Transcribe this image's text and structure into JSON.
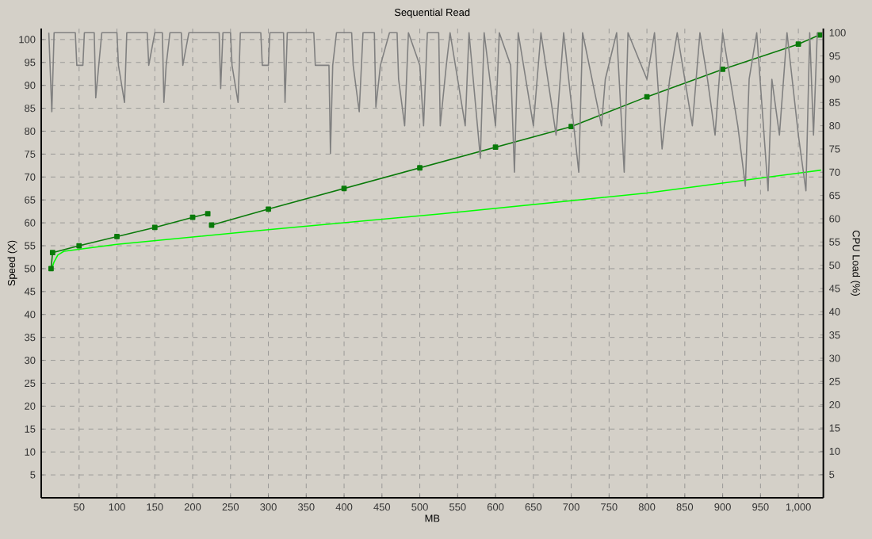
{
  "chart_data": {
    "type": "line",
    "title": "Sequential Read",
    "xlabel": "MB",
    "ylabel": "Speed (X)",
    "y2label": "CPU Load (%)",
    "xlim": [
      0,
      1033
    ],
    "ylim": [
      0,
      102.4
    ],
    "y2lim": [
      0,
      100.9
    ],
    "xticks": [
      50,
      100,
      150,
      200,
      250,
      300,
      350,
      400,
      450,
      500,
      550,
      600,
      650,
      700,
      750,
      800,
      850,
      900,
      950,
      {
        "value": 1000,
        "label": "1,000"
      }
    ],
    "yticks": [
      5,
      10,
      15,
      20,
      25,
      30,
      35,
      40,
      45,
      50,
      55,
      60,
      65,
      70,
      75,
      80,
      85,
      90,
      95,
      100
    ],
    "y2ticks": [
      5,
      10,
      15,
      20,
      25,
      30,
      35,
      40,
      45,
      50,
      55,
      60,
      65,
      70,
      75,
      80,
      85,
      90,
      95,
      100
    ],
    "grid": true,
    "series": [
      {
        "color": "#808080",
        "axis": "y2",
        "marker": "none",
        "x": [
          10,
          14,
          17,
          45,
          47,
          55,
          57,
          70,
          72,
          76,
          80,
          100,
          102,
          110,
          113,
          140,
          142,
          150,
          160,
          162,
          165,
          170,
          185,
          187,
          195,
          215,
          235,
          237,
          240,
          250,
          252,
          260,
          263,
          290,
          292,
          300,
          302,
          320,
          322,
          325,
          360,
          362,
          380,
          382,
          385,
          390,
          410,
          412,
          420,
          425,
          440,
          442,
          448,
          460,
          470,
          472,
          480,
          485,
          500,
          505,
          510,
          525,
          527,
          535,
          540,
          560,
          565,
          580,
          585,
          600,
          605,
          620,
          625,
          630,
          650,
          660,
          680,
          690,
          700,
          710,
          715,
          740,
          745,
          760,
          770,
          775,
          800,
          810,
          820,
          830,
          840,
          860,
          870,
          880,
          890,
          900,
          920,
          930,
          935,
          945,
          960,
          965,
          975,
          985,
          1000,
          1010,
          1015,
          1020,
          1025
        ],
        "values": [
          100,
          83,
          100,
          100,
          93,
          93,
          100,
          100,
          86,
          93,
          100,
          100,
          93,
          85,
          100,
          100,
          93,
          100,
          100,
          85,
          93,
          100,
          100,
          93,
          100,
          100,
          100,
          88,
          100,
          100,
          93,
          85,
          100,
          100,
          93,
          93,
          100,
          100,
          85,
          100,
          100,
          93,
          93,
          74,
          93,
          100,
          100,
          93,
          83,
          100,
          100,
          84,
          93,
          100,
          100,
          90,
          80,
          100,
          93,
          80,
          100,
          100,
          80,
          93,
          100,
          80,
          100,
          73,
          100,
          80,
          100,
          93,
          70,
          100,
          80,
          100,
          78,
          100,
          85,
          70,
          100,
          80,
          90,
          100,
          70,
          100,
          90,
          100,
          75,
          90,
          100,
          80,
          100,
          90,
          78,
          100,
          80,
          67,
          90,
          100,
          66,
          90,
          78,
          100,
          78,
          66,
          100,
          78,
          100
        ]
      },
      {
        "color": "#00ff00",
        "marker": "none",
        "x": [
          13,
          17,
          22,
          30,
          100,
          300,
          531,
          800,
          1030
        ],
        "values": [
          49.5,
          51.5,
          53,
          53.8,
          55.3,
          58.5,
          62,
          66.5,
          71.5
        ]
      },
      {
        "color": "#0a7a0a",
        "marker": "square",
        "x": [
          13,
          15,
          50,
          100,
          150,
          200,
          220,
          222,
          225,
          300,
          400,
          500,
          600,
          700,
          800,
          900,
          1000,
          1028
        ],
        "values": [
          50,
          53.5,
          55,
          57,
          59,
          61.2,
          62,
          null,
          59.5,
          63,
          67.5,
          72,
          76.5,
          81,
          87.5,
          93.5,
          99,
          101
        ]
      }
    ]
  }
}
